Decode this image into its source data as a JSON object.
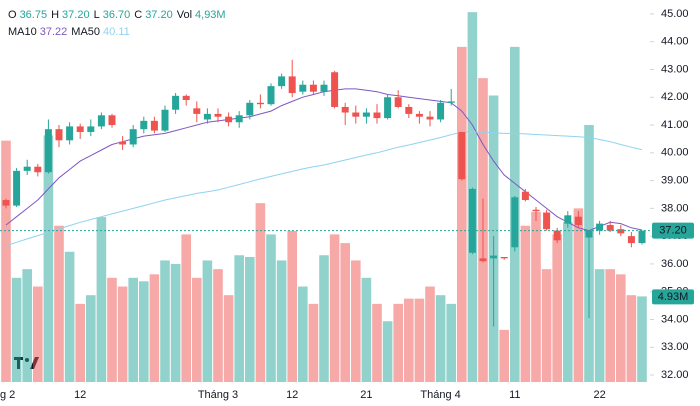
{
  "chart_data": {
    "type": "candlestick",
    "legend_ohlc": [
      {
        "key": "O",
        "value": "36.75"
      },
      {
        "key": "H",
        "value": "37.20"
      },
      {
        "key": "L",
        "value": "36.70"
      },
      {
        "key": "C",
        "value": "37.20"
      },
      {
        "key": "Vol",
        "value": "4,93M"
      }
    ],
    "legend_ma": [
      {
        "key": "MA10",
        "value": "37.22",
        "color": "#7e57c2"
      },
      {
        "key": "MA50",
        "value": "40.11",
        "color": "#8fd3f0"
      }
    ],
    "categories": [
      "g 2",
      null,
      null,
      null,
      null,
      null,
      null,
      "12",
      null,
      null,
      null,
      null,
      null,
      null,
      null,
      null,
      null,
      null,
      null,
      null,
      "Tháng 3",
      null,
      null,
      null,
      null,
      null,
      null,
      "12",
      null,
      null,
      null,
      null,
      null,
      null,
      "21",
      null,
      null,
      null,
      null,
      null,
      null,
      "Tháng 4",
      null,
      null,
      null,
      null,
      null,
      null,
      "11",
      null,
      null,
      null,
      null,
      null,
      null,
      null,
      "22",
      null,
      null,
      null,
      null
    ],
    "open": [
      38.3,
      38.1,
      39.35,
      39.5,
      39.3,
      40.85,
      40.45,
      40.95,
      40.75,
      40.95,
      41.35,
      40.4,
      40.3,
      40.85,
      41.15,
      40.8,
      41.55,
      42.05,
      41.6,
      41.2,
      41.4,
      41.3,
      41.1,
      41.35,
      41.8,
      41.75,
      42.4,
      42.75,
      42.2,
      42.45,
      42.2,
      42.9,
      41.65,
      41.45,
      41.3,
      41.45,
      41.25,
      42.0,
      41.65,
      41.4,
      41.3,
      41.2,
      41.8,
      40.75,
      36.4,
      36.2,
      36.2,
      36.25,
      36.6,
      38.6,
      37.95,
      37.85,
      37.2,
      37.45,
      37.7,
      36.95,
      37.2,
      37.4,
      37.25,
      37.0,
      36.75
    ],
    "high": [
      38.35,
      39.45,
      39.75,
      39.6,
      41.2,
      41.0,
      41.1,
      41.05,
      41.2,
      41.45,
      41.4,
      40.6,
      41.0,
      41.3,
      41.3,
      41.7,
      42.15,
      42.1,
      41.85,
      41.6,
      41.6,
      41.45,
      41.5,
      41.9,
      42.1,
      42.5,
      42.85,
      43.35,
      42.6,
      42.6,
      42.6,
      42.95,
      41.8,
      41.7,
      41.6,
      41.75,
      42.1,
      42.25,
      41.75,
      41.5,
      41.5,
      41.9,
      42.3,
      40.75,
      38.75,
      38.35,
      37.0,
      36.25,
      38.45,
      38.7,
      38.05,
      37.95,
      37.3,
      37.9,
      37.9,
      37.15,
      37.55,
      37.55,
      37.4,
      37.15,
      37.2
    ],
    "low": [
      38.0,
      38.05,
      39.2,
      39.15,
      39.25,
      40.2,
      40.3,
      40.5,
      40.6,
      40.85,
      40.9,
      40.1,
      40.2,
      40.7,
      40.7,
      40.75,
      41.4,
      41.7,
      41.1,
      41.05,
      41.1,
      40.95,
      40.9,
      41.2,
      41.6,
      41.7,
      42.3,
      42.0,
      42.1,
      42.1,
      42.05,
      41.6,
      41.0,
      41.05,
      41.05,
      41.05,
      41.2,
      41.6,
      41.25,
      41.05,
      40.95,
      41.1,
      41.7,
      39.0,
      36.35,
      36.05,
      33.75,
      36.15,
      36.45,
      38.25,
      37.55,
      37.2,
      36.75,
      37.3,
      37.3,
      34.05,
      37.05,
      37.15,
      37.0,
      36.6,
      36.7
    ],
    "close": [
      38.1,
      39.35,
      39.5,
      39.3,
      40.85,
      40.45,
      40.95,
      40.75,
      40.95,
      41.35,
      41.0,
      40.3,
      40.85,
      41.15,
      40.8,
      41.55,
      42.05,
      41.9,
      41.4,
      41.4,
      41.3,
      41.1,
      41.35,
      41.8,
      41.75,
      42.4,
      42.75,
      42.15,
      42.45,
      42.2,
      42.45,
      41.65,
      41.45,
      41.3,
      41.45,
      41.25,
      42.0,
      41.65,
      41.4,
      41.3,
      41.2,
      41.8,
      41.85,
      39.05,
      38.7,
      36.1,
      36.3,
      36.2,
      38.4,
      38.3,
      37.9,
      37.25,
      36.85,
      37.75,
      37.4,
      37.2,
      37.45,
      37.2,
      37.1,
      36.75,
      37.2
    ],
    "volume": [
      13.9,
      6.0,
      6.5,
      5.5,
      14.2,
      9.0,
      7.5,
      4.5,
      5.0,
      9.5,
      6.0,
      5.5,
      6.0,
      5.8,
      6.2,
      7.0,
      6.8,
      8.5,
      6.0,
      7.0,
      6.5,
      5.0,
      7.3,
      7.2,
      10.3,
      8.5,
      7.0,
      8.7,
      5.5,
      4.5,
      7.3,
      8.5,
      8.0,
      7.0,
      6.0,
      4.5,
      3.5,
      4.5,
      4.8,
      4.8,
      5.5,
      5.0,
      4.5,
      19.3,
      21.3,
      17.5,
      16.5,
      3.0,
      19.3,
      9.0,
      9.8,
      6.5,
      8.5,
      9.2,
      10.0,
      14.8,
      6.5,
      6.5,
      6.2,
      5.0,
      4.93
    ],
    "series": [
      {
        "name": "MA10",
        "color": "#7e57c2",
        "values": [
          37.4,
          37.7,
          38.0,
          38.3,
          38.7,
          39.1,
          39.4,
          39.7,
          39.9,
          40.1,
          40.3,
          40.4,
          40.5,
          40.6,
          40.65,
          40.7,
          40.8,
          40.9,
          41.0,
          41.1,
          41.15,
          41.2,
          41.25,
          41.3,
          41.4,
          41.5,
          41.7,
          41.85,
          42.0,
          42.1,
          42.2,
          42.25,
          42.3,
          42.3,
          42.25,
          42.2,
          42.1,
          42.05,
          42.0,
          41.95,
          41.9,
          41.85,
          41.8,
          41.5,
          41.0,
          40.3,
          39.7,
          39.2,
          38.9,
          38.6,
          38.3,
          38.0,
          37.7,
          37.5,
          37.3,
          37.2,
          37.35,
          37.5,
          37.45,
          37.3,
          37.22
        ]
      },
      {
        "name": "MA50",
        "color": "#8fd3f0",
        "values": [
          36.65,
          36.78,
          36.9,
          37.02,
          37.14,
          37.26,
          37.38,
          37.5,
          37.6,
          37.7,
          37.8,
          37.9,
          38.0,
          38.1,
          38.2,
          38.3,
          38.38,
          38.46,
          38.54,
          38.6,
          38.66,
          38.76,
          38.86,
          38.96,
          39.06,
          39.15,
          39.24,
          39.33,
          39.42,
          39.5,
          39.56,
          39.65,
          39.74,
          39.83,
          39.92,
          40.0,
          40.1,
          40.2,
          40.28,
          40.37,
          40.46,
          40.55,
          40.65,
          40.75,
          40.76,
          40.74,
          40.72,
          40.7,
          40.7,
          40.68,
          40.66,
          40.64,
          40.62,
          40.6,
          40.58,
          40.55,
          40.48,
          40.4,
          40.3,
          40.2,
          40.11
        ]
      }
    ],
    "up_color": "#26a69a",
    "down_color": "#ef5350",
    "ylim": [
      31.75,
      45.5
    ],
    "y2lim": [
      0,
      22
    ],
    "yticks": [
      {
        "value": 45,
        "label": "45.00"
      },
      {
        "value": 44,
        "label": "44.00"
      },
      {
        "value": 43,
        "label": "43.00"
      },
      {
        "value": 42,
        "label": "42.00"
      },
      {
        "value": 41,
        "label": "41.00"
      },
      {
        "value": 40,
        "label": "40.00"
      },
      {
        "value": 39,
        "label": "39.00"
      },
      {
        "value": 38,
        "label": "38.00"
      },
      {
        "value": 37,
        "label": "37.00"
      },
      {
        "value": 36,
        "label": "36.00"
      },
      {
        "value": 35,
        "label": "35.00"
      },
      {
        "value": 34,
        "label": "34.00"
      },
      {
        "value": 33,
        "label": "33.00"
      },
      {
        "value": 32,
        "label": "32.00"
      }
    ],
    "last_price": {
      "value": 37.2,
      "label": "37.20"
    },
    "last_volume": {
      "value": 4.93,
      "label": "4.93M"
    }
  }
}
